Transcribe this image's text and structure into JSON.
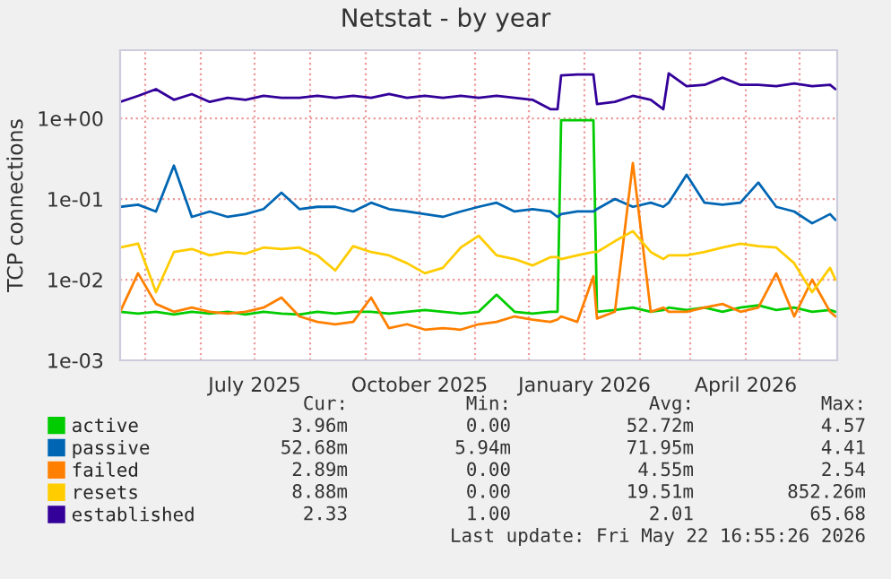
{
  "chart_data": {
    "type": "line",
    "title": "Netstat - by year",
    "ylabel": "TCP connections",
    "x": [
      "2025-04-17",
      "2025-04-27",
      "2025-05-07",
      "2025-05-17",
      "2025-05-27",
      "2025-06-06",
      "2025-06-16",
      "2025-06-26",
      "2025-07-06",
      "2025-07-16",
      "2025-07-26",
      "2025-08-05",
      "2025-08-15",
      "2025-08-25",
      "2025-09-04",
      "2025-09-14",
      "2025-09-24",
      "2025-10-04",
      "2025-10-14",
      "2025-10-24",
      "2025-11-03",
      "2025-11-13",
      "2025-11-23",
      "2025-12-03",
      "2025-12-13",
      "2025-12-17",
      "2025-12-19",
      "2025-12-28",
      "2026-01-06",
      "2026-01-08",
      "2026-01-18",
      "2026-01-28",
      "2026-02-07",
      "2026-02-14",
      "2026-02-17",
      "2026-02-27",
      "2026-03-09",
      "2026-03-19",
      "2026-03-29",
      "2026-04-08",
      "2026-04-18",
      "2026-04-28",
      "2026-05-08",
      "2026-05-18",
      "2026-05-21"
    ],
    "series": [
      {
        "name": "active",
        "color": "#00cc00",
        "values": [
          0.004,
          0.0038,
          0.004,
          0.0037,
          0.004,
          0.0038,
          0.004,
          0.0037,
          0.004,
          0.0038,
          0.0037,
          0.004,
          0.0038,
          0.004,
          0.004,
          0.0038,
          0.004,
          0.0042,
          0.004,
          0.0038,
          0.004,
          0.0065,
          0.004,
          0.0038,
          0.004,
          0.004,
          0.95,
          0.95,
          0.95,
          0.004,
          0.0042,
          0.0045,
          0.004,
          0.0042,
          0.0045,
          0.0042,
          0.0045,
          0.004,
          0.0045,
          0.0048,
          0.0042,
          0.0045,
          0.004,
          0.0042,
          0.004
        ]
      },
      {
        "name": "passive",
        "color": "#0066b3",
        "values": [
          0.08,
          0.085,
          0.07,
          0.26,
          0.06,
          0.07,
          0.06,
          0.065,
          0.075,
          0.12,
          0.075,
          0.08,
          0.08,
          0.07,
          0.09,
          0.075,
          0.07,
          0.065,
          0.06,
          0.07,
          0.08,
          0.09,
          0.07,
          0.075,
          0.07,
          0.06,
          0.065,
          0.07,
          0.07,
          0.075,
          0.1,
          0.08,
          0.09,
          0.08,
          0.09,
          0.2,
          0.09,
          0.085,
          0.09,
          0.16,
          0.08,
          0.07,
          0.05,
          0.065,
          0.055
        ]
      },
      {
        "name": "failed",
        "color": "#ff8000",
        "values": [
          0.004,
          0.012,
          0.005,
          0.004,
          0.0045,
          0.004,
          0.0038,
          0.004,
          0.0045,
          0.006,
          0.0035,
          0.003,
          0.0028,
          0.003,
          0.006,
          0.0025,
          0.0028,
          0.0024,
          0.0025,
          0.0024,
          0.0028,
          0.003,
          0.0035,
          0.0032,
          0.003,
          0.0032,
          0.0035,
          0.003,
          0.011,
          0.0033,
          0.004,
          0.28,
          0.004,
          0.0045,
          0.004,
          0.004,
          0.0045,
          0.005,
          0.004,
          0.0045,
          0.012,
          0.0035,
          0.01,
          0.004,
          0.0035
        ]
      },
      {
        "name": "resets",
        "color": "#ffcc00",
        "values": [
          0.025,
          0.028,
          0.007,
          0.022,
          0.024,
          0.02,
          0.022,
          0.021,
          0.025,
          0.024,
          0.025,
          0.02,
          0.013,
          0.026,
          0.022,
          0.02,
          0.016,
          0.012,
          0.014,
          0.025,
          0.035,
          0.02,
          0.018,
          0.015,
          0.019,
          0.019,
          0.018,
          0.02,
          0.022,
          0.022,
          0.03,
          0.04,
          0.022,
          0.018,
          0.02,
          0.02,
          0.022,
          0.025,
          0.028,
          0.026,
          0.025,
          0.016,
          0.007,
          0.014,
          0.01
        ]
      },
      {
        "name": "established",
        "color": "#330099",
        "values": [
          1.6,
          1.9,
          2.3,
          1.7,
          2.0,
          1.6,
          1.8,
          1.7,
          1.9,
          1.8,
          1.8,
          1.9,
          1.8,
          1.9,
          1.8,
          2.0,
          1.8,
          1.9,
          1.8,
          1.9,
          1.8,
          1.9,
          1.8,
          1.7,
          1.3,
          1.3,
          3.4,
          3.5,
          3.5,
          1.5,
          1.6,
          1.9,
          1.7,
          1.3,
          3.6,
          2.5,
          2.6,
          3.2,
          2.6,
          2.6,
          2.5,
          2.7,
          2.5,
          2.6,
          2.3
        ]
      }
    ],
    "log": true,
    "ylim": [
      0.001,
      7
    ],
    "yticks": [
      {
        "value": 0.001,
        "label": "1e-03"
      },
      {
        "value": 0.01,
        "label": "1e-02"
      },
      {
        "value": 0.1,
        "label": "1e-01"
      },
      {
        "value": 1,
        "label": "1e+00"
      }
    ],
    "xlim": [
      "2025-04-17",
      "2026-05-22"
    ],
    "xticks": [
      {
        "value": "2025-05-01",
        "label": null
      },
      {
        "value": "2025-06-01",
        "label": null
      },
      {
        "value": "2025-07-01",
        "label": "July 2025"
      },
      {
        "value": "2025-08-01",
        "label": null
      },
      {
        "value": "2025-09-01",
        "label": null
      },
      {
        "value": "2025-10-01",
        "label": "October 2025"
      },
      {
        "value": "2025-11-01",
        "label": null
      },
      {
        "value": "2025-12-01",
        "label": null
      },
      {
        "value": "2026-01-01",
        "label": "January 2026"
      },
      {
        "value": "2026-02-01",
        "label": null
      },
      {
        "value": "2026-03-01",
        "label": null
      },
      {
        "value": "2026-04-01",
        "label": "April 2026"
      },
      {
        "value": "2026-05-01",
        "label": null
      }
    ],
    "grid": true,
    "legend": "bottom left",
    "marker": "none",
    "line_style": "solid",
    "annotations": [
      "Cur:",
      "Min:",
      "Avg:",
      "Max:",
      "3.96m",
      "0.00",
      "52.72m",
      "4.57",
      "52.68m",
      "5.94m",
      "71.95m",
      "4.41",
      "2.89m",
      "0.00",
      "4.55m",
      "2.54",
      "8.88m",
      "0.00",
      "19.51m",
      "852.26m",
      "2.33",
      "1.00",
      "2.01",
      "65.68",
      "Last update: Fri May 22 16:55:26 2026"
    ]
  }
}
